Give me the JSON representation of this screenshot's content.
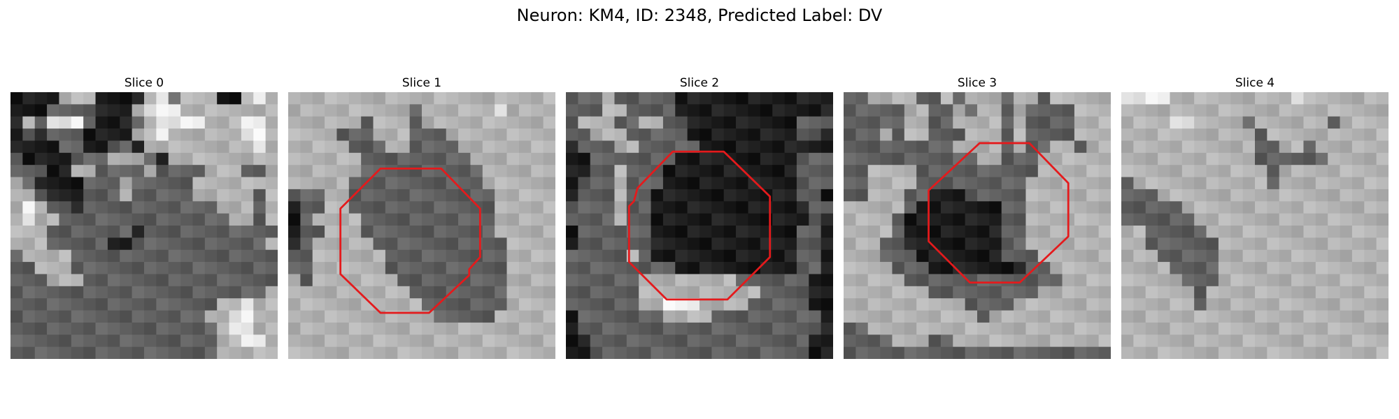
{
  "figure": {
    "title": "Neuron: KM4, ID: 2348, Predicted Label: DV",
    "contour_color": "#e41a1c",
    "colormap": "grayscale",
    "panels": [
      {
        "title": "Slice 0",
        "has_contour": false,
        "image": [
          "AAAACCCAAAACDECCCAACDC",
          "AAABBBBAAACDDDCCCCCCCC",
          "ACBDDDBAAABCDDDDCCCDDC",
          "ABABBBAAAACCDCCCCCCDDC",
          "AAAABBAABBACCCCCCCCCDC",
          "BAAAABBBCCCBACCCCCCCCC",
          "BBBAACCBBBBCBBBBCCCBBC",
          "CBAAAABBBCBBBBBCCCCCCC",
          "CCBAAABBBCBBBBBCCCCCBC",
          "CDCBBABBBBBBBBBBBCCCBC",
          "CDCCBBBBBBBBBBBBBBCCBC",
          "CCCBBBBBBBABBBBBBBBBBB",
          "CCCBBBBBAABBBBBBBBBBBC",
          "BCCCCBBBBBBBBBBBBBBBBB",
          "BBCCCBBBBBBBBBBBBBBBBB",
          "BBBCCCBBBBBBBBBBBBBBBB",
          "BBBBBBBBBBBBBBBBBBBBBC",
          "BBBBBBBBBBBBBBBBBCCDCC",
          "BBBBBBBBBBBBBBBBCCDDCC",
          "BBBBBBBBBBBBBBBBBCDDCC",
          "BBBBBBBBBBBBBBBBBCCDDC",
          "BBBBBBBBBBBBBBBBBCCCCC"
        ]
      },
      {
        "title": "Slice 1",
        "has_contour": true,
        "image": [
          "CCCCCCCCCCCCCCCCCCCCCC",
          "CCCCCCCCCCBCCCCCCDCCCC",
          "CCCCCCBCCCBCCCCCCCCCCC",
          "CCCCBBBCCCBBBCCCCCCCCC",
          "CCCCCBBBCCBBBBCCCCCCCC",
          "CCCCCCBBBBBBBBBCCCCCCC",
          "CCCCCCBBBBBBBBBBCCCCCC",
          "CCCCCBBBBBBBBBBBCCCCCC",
          "BBBCCBBBBBBBBBBBBCCCCC",
          "ABBCCBBBBBBBBBBBBCCCCC",
          "ABCCCCBBBBBBBBBBBCCCCC",
          "ABBCCCBBBBBBBBBBBCCCCC",
          "ABCCCCCBBBBBBBBBBBCCCC",
          "BBCCCCCCBBBBBBBBBBCCCC",
          "BBCCCCCCBBBBBBBBBBCCCC",
          "CBCCCCCCCBBBBBBBBBCCCC",
          "CCCCCCCCCCBBBBBBBBCCCC",
          "CCCCCCCCCCCBBBBBBBCCCC",
          "CCCCCCCCCCCCBBBBBCCCCC",
          "CCCCCCCCCCCCCCCCCCCCCC",
          "CCCCCCCCCCCCCCCCCCCCCC",
          "CCCCCCCCCCCCCCCCCCCCCC"
        ]
      },
      {
        "title": "Slice 2",
        "has_contour": true,
        "image": [
          "BBBCBBBBBAAAAAAAAAAAAA",
          "BBBCCBBBBAAAAAAAAAAAAA",
          "BCCCBBCCBBAAAAAAAAABBB",
          "BBCCCBBBBBAAAAAAAAABBA",
          "ABBBCCBBBBBAAAAAAAAAAA",
          "AABBBBBBBAAAAAAAAAABBB",
          "AABBCBBBAAAAAAAAAAABBB",
          "ABBBCBBBAAAAAAAAAAABBB",
          "ABBBCBBAAAAAAAAAAAABBA",
          "BBBBCBBAAAAAAAAAAAAABB",
          "BBBBCBBAAAAAAAAAAAAABA",
          "ABBBBBBAAAAAAAAAAAABBA",
          "ABBBBBBAAAAAAAAAAAABBA",
          "BBBBBCBAAAAAAAAAAAABBA",
          "BBBBBBBBBAAAAAAAAAABBA",
          "BBBBBBCCCCCCCCBBBBBBAA",
          "BBBBBBCCCCCCCCCCBBBBAA",
          "BBBBBBCCDDDCCCCBBBBBAA",
          "ABBBBBBBCCCCBBBBBBBBBA",
          "ABBBBBBBBBBBBBBBBBBBBA",
          "AABBBBBBBBBBBBBBBBBBAA",
          "AABBBBBBBBBBBBBBBBBBAA"
        ]
      },
      {
        "title": "Slice 3",
        "has_contour": true,
        "image": [
          "BBCCCCBBCBCCCBCCBCCCCC",
          "BBBBBCCBBCBCCBCBBBBCCC",
          "BBBBBCCBBCCCCBCBBBBCCC",
          "BBBCBCCBBBCCCBCBBBBCCC",
          "BBBBBBBBBCCCCBCBBCCBCC",
          "BBBBBBBBBBBCCBBBCCCCCC",
          "BBCCCCBBBBBBBBBBCCCCCC",
          "BBCCCCBBBBBBBBBCCCCCCC",
          "BBCCCBBAAABBBBBCCCCCCC",
          "CCCCCBAAAAAAABBCCCCCCC",
          "CCCCBAAAAAAAABBCCCCCCC",
          "CCCCBAAAAAAAABBCCCCCCC",
          "CCCBBAAAAAAAABBCCCCCCC",
          "CCCBBBAAAAAAABBBCCCCCC",
          "CCCCBBBAAAAAAAABBCCCCC",
          "CCCCCBBBBBBBBBBBBBCCCC",
          "CCCCCCCBBBBBBBBBCCCCCC",
          "CCCCCCCCCCBBBBCCCCCCCC",
          "CCCCCCCCCCCBCCCCCCCCCC",
          "BBCCCCCCCCCCCCCCCCCCCC",
          "BBBBCCCBBCCCCCCCCCCCCC",
          "BBBBBBBBBBBBBBBBBBBBBB"
        ]
      },
      {
        "title": "Slice 4",
        "has_contour": false,
        "image": [
          "DDDDCCCCCCCCCCDCCCCCCC",
          "CCCCCCCCCCCCCCCCCCCCCC",
          "CCCCDDCCCCBCCCCCCBCCCC",
          "CCCCCCCCCCCBCCCCCCCCCC",
          "CCCCCCCCCCCBBCCBCCCCCC",
          "CCCCCCCCCCCBBBBBBCCCCC",
          "CCCCCCCCCCCCBCCCCCCCCC",
          "BCCCCCCCCCCCBCCCCCCCCC",
          "BBBCCCCCCCCCCCCCCCCCCC",
          "BBBBBCCCCCCCCCCCCCCCCC",
          "BBBBBBCCCCCCCCCCCCCCCC",
          "CCBBBBBCCCCCCCCCCCCCCC",
          "CCBBBBBBCCCCCCCCCCCCCC",
          "CCCBBBBBCCCCCCCCCCCCCC",
          "CCCCBBBBCCCCCCCCCCCCCC",
          "CCCCCBBBCCCCCCCCCCCCCC",
          "CCCCCCBCCCCCCCCCCCCCCC",
          "CCCCCCBCCCCCCCCCCCCCCC",
          "CCCCCCCCCCCCCCCCCCCCCC",
          "CCCCCCCCCCCCCCCCCCCCCC",
          "CCCCCCCCCCCCCCCCCCCCCC",
          "CCCCCCCCCCCCCCCCCCCCCC"
        ]
      }
    ]
  }
}
